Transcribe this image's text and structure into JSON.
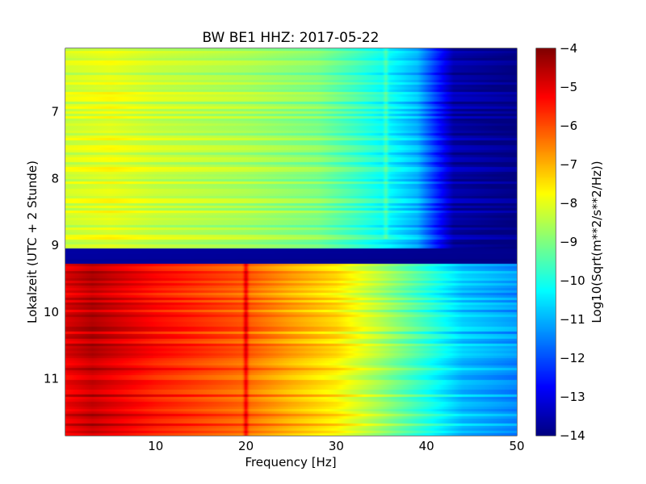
{
  "chart_data": {
    "type": "heatmap",
    "title": "BW BE1 HHZ: 2017-05-22",
    "xlabel": "Frequency [Hz]",
    "ylabel": "Lokalzeit (UTC + 2 Stunde)",
    "xlim": [
      0,
      50
    ],
    "ylim": [
      6.05,
      11.85
    ],
    "y_inverted": true,
    "x_ticks": [
      10,
      20,
      30,
      40,
      50
    ],
    "y_ticks": [
      7,
      8,
      9,
      10,
      11
    ],
    "grid": true,
    "colormap": "jet",
    "colorbar": {
      "label": "Log10(Sqrt(m**2/s**2/Hz))",
      "min": -14,
      "max": -4,
      "ticks": [
        -4,
        -5,
        -6,
        -7,
        -8,
        -9,
        -10,
        -11,
        -12,
        -13,
        -14
      ]
    },
    "segments": [
      {
        "t_start": 6.05,
        "t_end": 9.05,
        "profile": [
          {
            "f": 0,
            "v": -8.2
          },
          {
            "f": 5,
            "v": -8.0
          },
          {
            "f": 10,
            "v": -8.3
          },
          {
            "f": 20,
            "v": -8.6
          },
          {
            "f": 28,
            "v": -9.0
          },
          {
            "f": 32,
            "v": -9.6
          },
          {
            "f": 36,
            "v": -10.3
          },
          {
            "f": 39,
            "v": -11.0
          },
          {
            "f": 41,
            "v": -12.3
          },
          {
            "f": 43,
            "v": -13.6
          },
          {
            "f": 50,
            "v": -14.0
          }
        ]
      },
      {
        "t_start": 9.05,
        "t_end": 9.28,
        "profile": [
          {
            "f": 0,
            "v": -13.7
          },
          {
            "f": 50,
            "v": -13.9
          }
        ]
      },
      {
        "t_start": 9.28,
        "t_end": 11.85,
        "profile": [
          {
            "f": 0,
            "v": -5.0
          },
          {
            "f": 3,
            "v": -4.6
          },
          {
            "f": 10,
            "v": -5.4
          },
          {
            "f": 20,
            "v": -6.2
          },
          {
            "f": 25,
            "v": -6.9
          },
          {
            "f": 30,
            "v": -7.5
          },
          {
            "f": 35,
            "v": -8.6
          },
          {
            "f": 40,
            "v": -9.8
          },
          {
            "f": 44,
            "v": -10.8
          },
          {
            "f": 50,
            "v": -11.3
          }
        ]
      }
    ],
    "features": [
      {
        "type": "spectral-line",
        "f": 20,
        "t_start": 9.28,
        "t_end": 11.85,
        "boost": 1.1
      },
      {
        "type": "spectral-line",
        "f": 35.5,
        "t_start": 6.05,
        "t_end": 8.9,
        "boost": 0.6
      }
    ]
  }
}
